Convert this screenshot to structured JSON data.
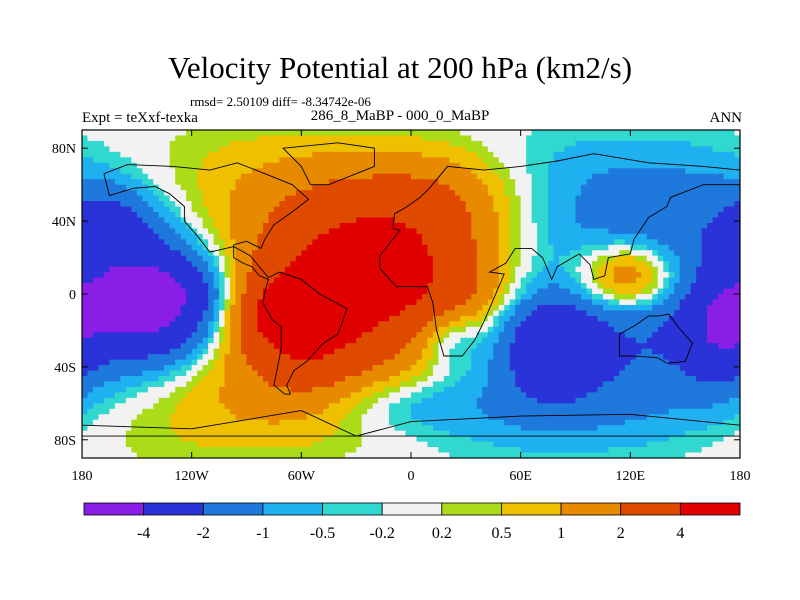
{
  "header": {
    "title": "Velocity Potential at 200 hPa (km2/s)",
    "stats": "rmsd= 2.50109 diff= -8.34742e-06",
    "left_label": "Expt = teXxf-texka",
    "center_label": "286_8_MaBP - 000_0_MaBP",
    "right_label": "ANN"
  },
  "chart_data": {
    "type": "heatmap",
    "title": "Velocity Potential at 200 hPa (km2/s)",
    "subtitle": "286_8_MaBP - 000_0_MaBP",
    "xlabel": "",
    "ylabel": "",
    "xlim": [
      -180,
      180
    ],
    "ylim": [
      -90,
      90
    ],
    "x_ticks": [
      {
        "value": -180,
        "label": "180"
      },
      {
        "value": -120,
        "label": "120W"
      },
      {
        "value": -60,
        "label": "60W"
      },
      {
        "value": 0,
        "label": "0"
      },
      {
        "value": 60,
        "label": "60E"
      },
      {
        "value": 120,
        "label": "120E"
      },
      {
        "value": 180,
        "label": "180"
      }
    ],
    "y_ticks": [
      {
        "value": 80,
        "label": "80N"
      },
      {
        "value": 40,
        "label": "40N"
      },
      {
        "value": 0,
        "label": "0"
      },
      {
        "value": -40,
        "label": "40S"
      },
      {
        "value": -80,
        "label": "80S"
      }
    ],
    "colorbar": {
      "labels": [
        "-4",
        "-2",
        "-1",
        "-0.5",
        "-0.2",
        "0.2",
        "0.5",
        "1",
        "2",
        "4"
      ],
      "colors": [
        "#8a1ee6",
        "#2a33d8",
        "#1f78dc",
        "#1fb0f0",
        "#30d8d0",
        "#f2f2f2",
        "#aadc18",
        "#eec000",
        "#e88a00",
        "#e04a00",
        "#e00000"
      ]
    },
    "field": {
      "base": {
        "amplitude": 2.2,
        "wavenumber": 1,
        "phase_lon": -20,
        "tilt_north": 0.5,
        "tilt_south": -0.8
      },
      "centers": [
        {
          "lon": -20,
          "lat": 15,
          "amp": 3.2,
          "sx": 38,
          "sy": 28
        },
        {
          "lon": -75,
          "lat": -10,
          "amp": 2.4,
          "sx": 18,
          "sy": 16
        },
        {
          "lon": -55,
          "lat": -20,
          "amp": 1.8,
          "sx": 20,
          "sy": 22
        },
        {
          "lon": 120,
          "lat": 10,
          "amp": 3.0,
          "sx": 22,
          "sy": 14
        },
        {
          "lon": 20,
          "lat": 55,
          "amp": 1.0,
          "sx": 30,
          "sy": 18
        },
        {
          "lon": -140,
          "lat": -5,
          "amp": -4.5,
          "sx": 26,
          "sy": 22
        },
        {
          "lon": 75,
          "lat": -25,
          "amp": -3.0,
          "sx": 20,
          "sy": 22
        },
        {
          "lon": 170,
          "lat": -20,
          "amp": -2.2,
          "sx": 14,
          "sy": 20
        },
        {
          "lon": -165,
          "lat": 40,
          "amp": -1.6,
          "sx": 18,
          "sy": 14
        },
        {
          "lon": 0,
          "lat": -60,
          "amp": -1.0,
          "sx": 35,
          "sy": 12
        },
        {
          "lon": 20,
          "lat": -25,
          "amp": -1.5,
          "sx": 14,
          "sy": 12
        }
      ]
    },
    "coastlines": [
      [
        [
          -168,
          66
        ],
        [
          -155,
          71
        ],
        [
          -130,
          70
        ],
        [
          -110,
          68
        ],
        [
          -95,
          72
        ],
        [
          -80,
          66
        ],
        [
          -65,
          60
        ],
        [
          -56,
          52
        ],
        [
          -65,
          45
        ],
        [
          -75,
          38
        ],
        [
          -80,
          30
        ],
        [
          -82,
          25
        ],
        [
          -90,
          29
        ],
        [
          -97,
          27
        ],
        [
          -97,
          20
        ],
        [
          -92,
          17
        ],
        [
          -87,
          15
        ],
        [
          -83,
          10
        ],
        [
          -78,
          8
        ],
        [
          -80,
          1
        ],
        [
          -81,
          -5
        ],
        [
          -76,
          -14
        ],
        [
          -71,
          -18
        ],
        [
          -71,
          -30
        ],
        [
          -73,
          -40
        ],
        [
          -75,
          -50
        ],
        [
          -69,
          -55
        ],
        [
          -66,
          -55
        ],
        [
          -68,
          -50
        ],
        [
          -64,
          -42
        ],
        [
          -57,
          -37
        ],
        [
          -48,
          -27
        ],
        [
          -40,
          -22
        ],
        [
          -35,
          -8
        ],
        [
          -50,
          0
        ],
        [
          -60,
          8
        ],
        [
          -72,
          12
        ],
        [
          -78,
          9
        ],
        [
          -88,
          21
        ],
        [
          -97,
          26
        ],
        [
          -110,
          23
        ],
        [
          -117,
          32
        ],
        [
          -124,
          40
        ],
        [
          -124,
          48
        ],
        [
          -132,
          55
        ],
        [
          -140,
          59
        ],
        [
          -152,
          58
        ],
        [
          -165,
          54
        ],
        [
          -168,
          66
        ]
      ],
      [
        [
          -55,
          60
        ],
        [
          -45,
          60
        ],
        [
          -20,
          70
        ],
        [
          -20,
          80
        ],
        [
          -40,
          83
        ],
        [
          -70,
          80
        ],
        [
          -60,
          70
        ],
        [
          -55,
          60
        ]
      ],
      [
        [
          -10,
          36
        ],
        [
          -9,
          44
        ],
        [
          -2,
          48
        ],
        [
          5,
          53
        ],
        [
          10,
          58
        ],
        [
          20,
          70
        ],
        [
          40,
          68
        ],
        [
          60,
          70
        ],
        [
          80,
          73
        ],
        [
          100,
          77
        ],
        [
          130,
          72
        ],
        [
          160,
          70
        ],
        [
          180,
          68
        ],
        [
          180,
          60
        ],
        [
          160,
          60
        ],
        [
          142,
          53
        ],
        [
          140,
          48
        ],
        [
          130,
          42
        ],
        [
          122,
          30
        ],
        [
          120,
          22
        ],
        [
          108,
          20
        ],
        [
          106,
          10
        ],
        [
          100,
          8
        ],
        [
          98,
          16
        ],
        [
          92,
          22
        ],
        [
          80,
          15
        ],
        [
          77,
          8
        ],
        [
          72,
          20
        ],
        [
          66,
          25
        ],
        [
          57,
          25
        ],
        [
          52,
          17
        ],
        [
          43,
          12
        ],
        [
          51,
          11
        ],
        [
          40,
          -15
        ],
        [
          35,
          -25
        ],
        [
          28,
          -34
        ],
        [
          18,
          -34
        ],
        [
          14,
          -20
        ],
        [
          12,
          -5
        ],
        [
          9,
          4
        ],
        [
          -8,
          4
        ],
        [
          -17,
          14
        ],
        [
          -17,
          21
        ],
        [
          -6,
          35
        ],
        [
          -10,
          36
        ]
      ],
      [
        [
          114,
          -22
        ],
        [
          114,
          -34
        ],
        [
          122,
          -34
        ],
        [
          135,
          -35
        ],
        [
          140,
          -38
        ],
        [
          150,
          -37
        ],
        [
          154,
          -27
        ],
        [
          146,
          -18
        ],
        [
          141,
          -11
        ],
        [
          136,
          -12
        ],
        [
          130,
          -12
        ],
        [
          123,
          -17
        ],
        [
          114,
          -22
        ]
      ],
      [
        [
          -180,
          -72
        ],
        [
          -120,
          -74
        ],
        [
          -60,
          -64
        ],
        [
          -30,
          -78
        ],
        [
          0,
          -70
        ],
        [
          60,
          -67
        ],
        [
          120,
          -66
        ],
        [
          180,
          -72
        ],
        [
          180,
          -78
        ],
        [
          -180,
          -78
        ]
      ]
    ]
  }
}
